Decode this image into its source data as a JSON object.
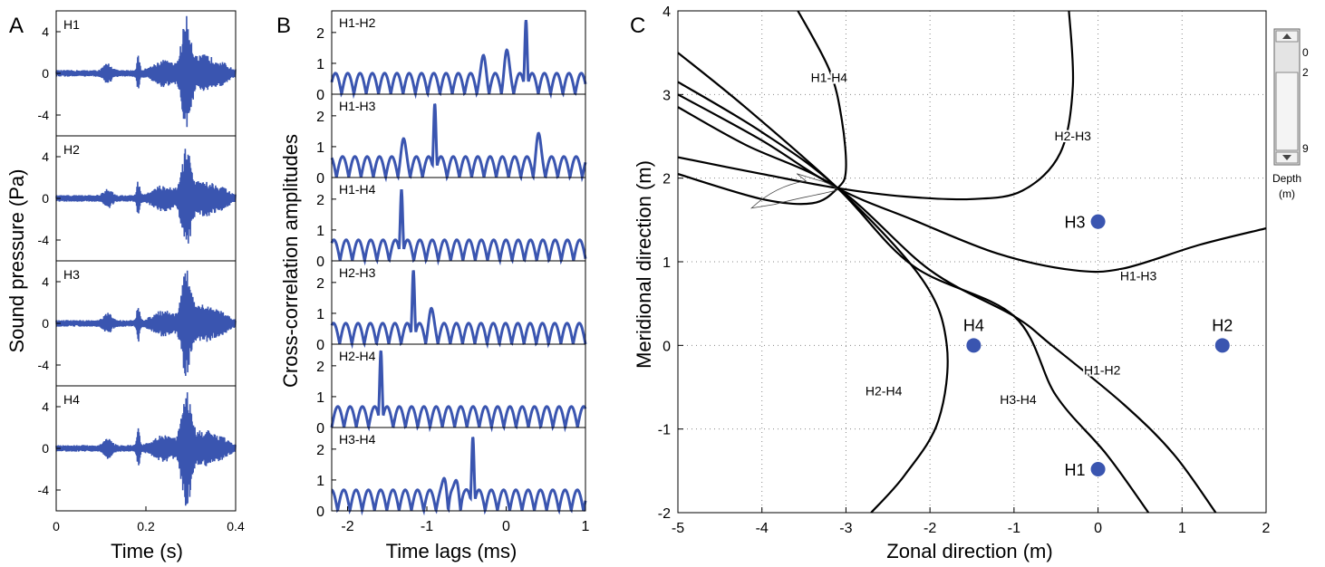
{
  "panel_letters": {
    "a": "A",
    "b": "B",
    "c": "C"
  },
  "colors": {
    "signal": "#3a55b0",
    "curve": "#000000",
    "grid": "#888888"
  },
  "chart_data": [
    {
      "type": "line",
      "panel": "A",
      "xlabel": "Time (s)",
      "ylabel": "Sound pressure (Pa)",
      "xlim": [
        0,
        0.4
      ],
      "ylim": [
        -6,
        6
      ],
      "xticks": [
        {
          "v": 0,
          "label": "0"
        },
        {
          "v": 0.2,
          "label": "0.2"
        },
        {
          "v": 0.4,
          "label": "0.4"
        }
      ],
      "yticks": [
        {
          "v": 4,
          "label": "4"
        },
        {
          "v": 0,
          "label": "0"
        },
        {
          "v": -4,
          "label": "-4"
        }
      ],
      "series": [
        {
          "name": "H1",
          "peak": 4.9,
          "peak_time": 0.29
        },
        {
          "name": "H2",
          "peak": 4.3,
          "peak_time": 0.29
        },
        {
          "name": "H3",
          "peak": 4.6,
          "peak_time": 0.29
        },
        {
          "name": "H4",
          "peak": 5.3,
          "peak_time": 0.29
        }
      ]
    },
    {
      "type": "line",
      "panel": "B",
      "xlabel": "Time lags (ms)",
      "ylabel": "Cross-correlation amplitudes",
      "xlim": [
        -2.2,
        1.0
      ],
      "ylim": [
        0,
        2.7
      ],
      "xticks": [
        {
          "v": -2,
          "label": "-2"
        },
        {
          "v": -1,
          "label": "-1"
        },
        {
          "v": 0,
          "label": "0"
        },
        {
          "v": 1,
          "label": "1"
        }
      ],
      "yticks": [
        {
          "v": 0,
          "label": "0"
        },
        {
          "v": 1,
          "label": "1"
        },
        {
          "v": 2,
          "label": "2"
        }
      ],
      "series": [
        {
          "name": "H1-H2",
          "peak_lag": 0.25,
          "peak": 2.4,
          "secondary": [
            {
              "lag": 0.0,
              "amp": 1.4
            },
            {
              "lag": -0.28,
              "amp": 1.2
            }
          ]
        },
        {
          "name": "H1-H3",
          "peak_lag": -0.9,
          "peak": 2.4,
          "secondary": [
            {
              "lag": 0.4,
              "amp": 1.4
            },
            {
              "lag": -1.3,
              "amp": 1.2
            }
          ]
        },
        {
          "name": "H1-H4",
          "peak_lag": -1.32,
          "peak": 2.3,
          "secondary": []
        },
        {
          "name": "H2-H3",
          "peak_lag": -1.17,
          "peak": 2.4,
          "secondary": [
            {
              "lag": -0.95,
              "amp": 1.1
            }
          ]
        },
        {
          "name": "H2-H4",
          "peak_lag": -1.58,
          "peak": 2.5,
          "secondary": []
        },
        {
          "name": "H3-H4",
          "peak_lag": -0.42,
          "peak": 2.4,
          "secondary": [
            {
              "lag": -0.75,
              "amp": 1.4
            },
            {
              "lag": -0.6,
              "amp": 1.2
            }
          ]
        }
      ]
    },
    {
      "type": "scatter",
      "panel": "C",
      "xlabel": "Zonal direction (m)",
      "ylabel": "Meridional direction (m)",
      "xlim": [
        -5,
        2
      ],
      "ylim": [
        -2,
        4
      ],
      "grid": true,
      "xticks": [
        -5,
        -4,
        -3,
        -2,
        -1,
        0,
        1,
        2
      ],
      "yticks": [
        -2,
        -1,
        0,
        1,
        2,
        3,
        4
      ],
      "hydrophones": [
        {
          "name": "H1",
          "x": 0,
          "y": -1.48
        },
        {
          "name": "H2",
          "x": 1.48,
          "y": 0
        },
        {
          "name": "H3",
          "x": 0,
          "y": 1.48
        },
        {
          "name": "H4",
          "x": -1.48,
          "y": 0
        }
      ],
      "source": {
        "x": -3.1,
        "y": 1.88
      },
      "hyperbolas": [
        {
          "name": "H1-H4",
          "label_at": [
            -3.2,
            3.15
          ],
          "points": [
            [
              -3.6,
              4.05
            ],
            [
              -3.2,
              3.3
            ],
            [
              -3.05,
              2.7
            ],
            [
              -3.0,
              2.1
            ],
            [
              -3.1,
              1.88
            ],
            [
              -3.4,
              1.7
            ],
            [
              -4.0,
              1.75
            ],
            [
              -5.0,
              2.05
            ]
          ]
        },
        {
          "name": "H2-H3",
          "label_at": [
            -0.3,
            2.45
          ],
          "points": [
            [
              -0.35,
              4.05
            ],
            [
              -0.3,
              3.1
            ],
            [
              -0.45,
              2.3
            ],
            [
              -0.9,
              1.85
            ],
            [
              -1.5,
              1.75
            ],
            [
              -2.3,
              1.78
            ],
            [
              -3.1,
              1.88
            ],
            [
              -4.0,
              2.05
            ],
            [
              -5.0,
              2.25
            ]
          ]
        },
        {
          "name": "H1-H3",
          "label_at": [
            0.48,
            0.78
          ],
          "points": [
            [
              -5.0,
              3.0
            ],
            [
              -4.0,
              2.45
            ],
            [
              -3.1,
              1.88
            ],
            [
              -2.2,
              1.5
            ],
            [
              -1.2,
              1.1
            ],
            [
              -0.3,
              0.9
            ],
            [
              0.3,
              0.92
            ],
            [
              1.2,
              1.2
            ],
            [
              2.0,
              1.4
            ]
          ]
        },
        {
          "name": "H1-H2",
          "label_at": [
            0.05,
            -0.35
          ],
          "points": [
            [
              -5.0,
              2.85
            ],
            [
              -4.2,
              2.4
            ],
            [
              -3.1,
              1.88
            ],
            [
              -2.0,
              0.9
            ],
            [
              -1.0,
              0.35
            ],
            [
              -0.55,
              0.0
            ],
            [
              0.3,
              -0.7
            ],
            [
              0.9,
              -1.3
            ],
            [
              1.4,
              -2.0
            ]
          ]
        },
        {
          "name": "H3-H4",
          "label_at": [
            -0.95,
            -0.7
          ],
          "points": [
            [
              -5.0,
              3.5
            ],
            [
              -4.2,
              2.85
            ],
            [
              -3.1,
              1.88
            ],
            [
              -2.2,
              0.95
            ],
            [
              -1.0,
              0.35
            ],
            [
              -0.5,
              -0.6
            ],
            [
              0.1,
              -1.3
            ],
            [
              0.6,
              -2.0
            ]
          ]
        },
        {
          "name": "H2-H4",
          "label_at": [
            -2.55,
            -0.6
          ],
          "points": [
            [
              -5.0,
              3.15
            ],
            [
              -4.0,
              2.55
            ],
            [
              -3.1,
              1.88
            ],
            [
              -2.1,
              0.8
            ],
            [
              -1.8,
              0.0
            ],
            [
              -1.9,
              -0.9
            ],
            [
              -2.3,
              -1.55
            ],
            [
              -2.7,
              -2.0
            ]
          ]
        }
      ]
    }
  ],
  "depth_scale": {
    "top": 0,
    "mid": 2,
    "bottom": 9,
    "label_top": "0",
    "label_mid": "2",
    "label_bottom": "9",
    "value_range": [
      2,
      9
    ],
    "title_line1": "Depth",
    "title_line2": "(m)"
  }
}
